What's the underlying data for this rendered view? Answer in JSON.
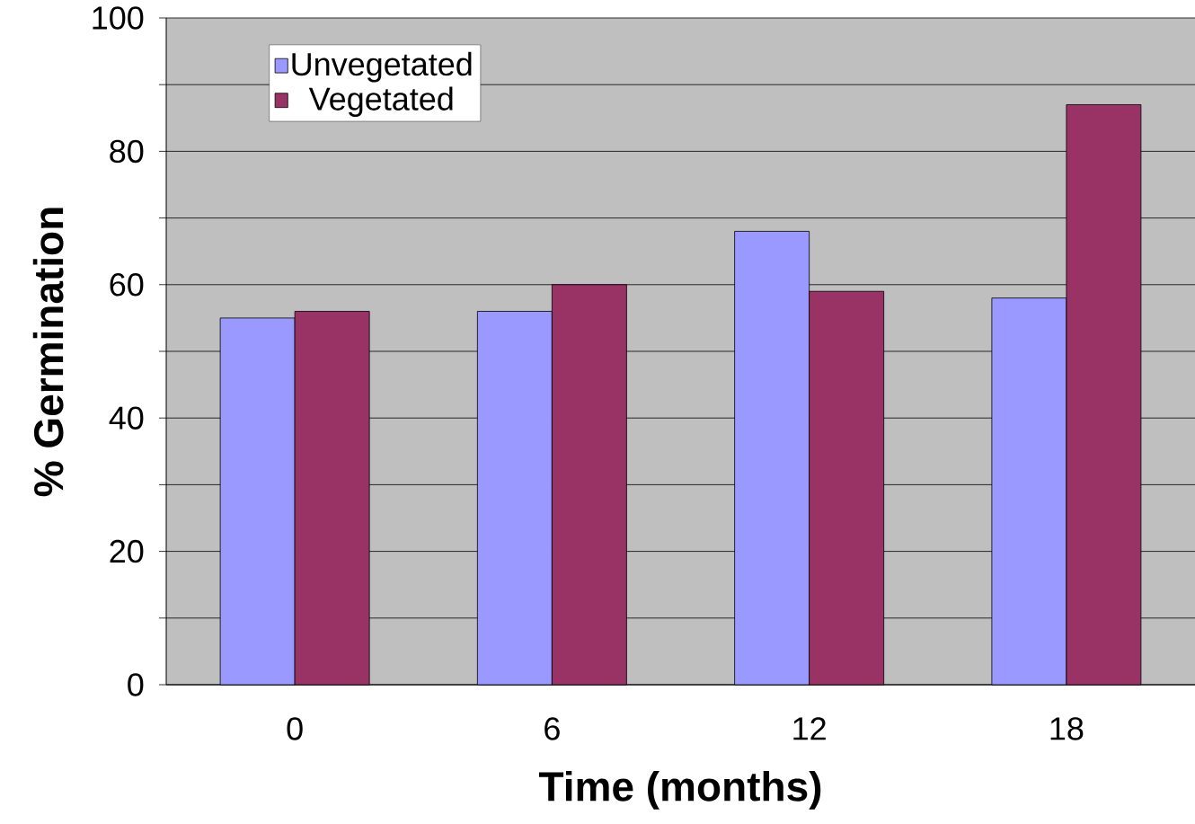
{
  "chart_data": {
    "type": "bar",
    "xlabel": "Time (months)",
    "ylabel": "% Germination",
    "categories": [
      "0",
      "6",
      "12",
      "18"
    ],
    "series": [
      {
        "name": "Unvegetated",
        "color": "#9999ff",
        "values": [
          55,
          56,
          68,
          58
        ]
      },
      {
        "name": "Vegetated",
        "color": "#993366",
        "values": [
          56,
          60,
          59,
          87
        ]
      }
    ],
    "ylim": [
      0,
      100
    ],
    "yticks": [
      0,
      {
        "value": 10,
        "label": null
      },
      20,
      {
        "value": 30,
        "label": null
      },
      40,
      {
        "value": 50,
        "label": null
      },
      60,
      {
        "value": 70,
        "label": null
      },
      80,
      {
        "value": 90,
        "label": null
      },
      100
    ],
    "grid": "y",
    "legend": "top left"
  }
}
